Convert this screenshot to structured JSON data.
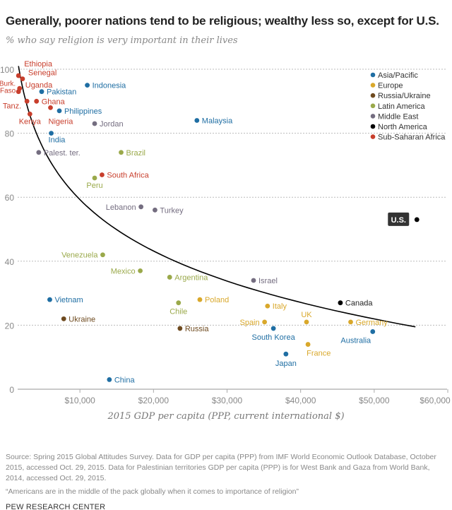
{
  "chart_data": {
    "type": "scatter",
    "title": "Generally, poorer nations tend to be religious; wealthy less so, except for U.S.",
    "subtitle": "% who say religion is very important in their lives",
    "xlabel": "2015 GDP per capita (PPP, current international $)",
    "ylabel": "",
    "xlim": [
      1500,
      60000
    ],
    "ylim": [
      0,
      100
    ],
    "x_ticks": [
      10000,
      20000,
      30000,
      40000,
      50000,
      60000
    ],
    "x_tick_labels": [
      "$10,000",
      "$20,000",
      "$30,000",
      "$40,000",
      "$50,000",
      "$60,000"
    ],
    "y_ticks": [
      0,
      20,
      40,
      60,
      80,
      100
    ],
    "y_tick_labels": [
      "0",
      "20",
      "40",
      "60",
      "80",
      "100"
    ],
    "grid": "horizontal dotted",
    "legend_placement": "top-right",
    "trendline": {
      "type": "logarithmic",
      "x_range": [
        1650,
        55600
      ]
    },
    "regions": [
      {
        "name": "Asia/Pacific",
        "color": "#1f6ea3"
      },
      {
        "name": "Europe",
        "color": "#d9a82b"
      },
      {
        "name": "Russia/Ukraine",
        "color": "#6e4a1f"
      },
      {
        "name": "Latin America",
        "color": "#9aa94a"
      },
      {
        "name": "Middle East",
        "color": "#746d80"
      },
      {
        "name": "North America",
        "color": "#000000"
      },
      {
        "name": "Sub-Saharan Africa",
        "color": "#c83e2c"
      }
    ],
    "points": [
      {
        "label": "Ethiopia",
        "region": "Sub-Saharan Africa",
        "x": 1650,
        "y": 98
      },
      {
        "label": "Senegal",
        "region": "Sub-Saharan Africa",
        "x": 2200,
        "y": 97
      },
      {
        "label": "Uganda",
        "region": "Sub-Saharan Africa",
        "x": 1800,
        "y": 94
      },
      {
        "label": "Burk. Faso",
        "region": "Sub-Saharan Africa",
        "x": 1650,
        "y": 93
      },
      {
        "label": "Tanz.",
        "region": "Sub-Saharan Africa",
        "x": 2800,
        "y": 90
      },
      {
        "label": "Ghana",
        "region": "Sub-Saharan Africa",
        "x": 4100,
        "y": 90
      },
      {
        "label": "Nigeria",
        "region": "Sub-Saharan Africa",
        "x": 6000,
        "y": 88
      },
      {
        "label": "Kenya",
        "region": "Sub-Saharan Africa",
        "x": 3200,
        "y": 86
      },
      {
        "label": "South Africa",
        "region": "Sub-Saharan Africa",
        "x": 13000,
        "y": 67
      },
      {
        "label": "Pakistan",
        "region": "Asia/Pacific",
        "x": 4800,
        "y": 93
      },
      {
        "label": "Indonesia",
        "region": "Asia/Pacific",
        "x": 11000,
        "y": 95
      },
      {
        "label": "Philippines",
        "region": "Asia/Pacific",
        "x": 7200,
        "y": 87
      },
      {
        "label": "India",
        "region": "Asia/Pacific",
        "x": 6100,
        "y": 80
      },
      {
        "label": "Malaysia",
        "region": "Asia/Pacific",
        "x": 25900,
        "y": 84
      },
      {
        "label": "Vietnam",
        "region": "Asia/Pacific",
        "x": 5900,
        "y": 28
      },
      {
        "label": "South Korea",
        "region": "Asia/Pacific",
        "x": 36300,
        "y": 19
      },
      {
        "label": "Australia",
        "region": "Asia/Pacific",
        "x": 49800,
        "y": 18
      },
      {
        "label": "Japan",
        "region": "Asia/Pacific",
        "x": 38000,
        "y": 11
      },
      {
        "label": "China",
        "region": "Asia/Pacific",
        "x": 14000,
        "y": 3
      },
      {
        "label": "Jordan",
        "region": "Middle East",
        "x": 12000,
        "y": 83
      },
      {
        "label": "Palest. ter.",
        "region": "Middle East",
        "x": 4400,
        "y": 74
      },
      {
        "label": "Lebanon",
        "region": "Middle East",
        "x": 18300,
        "y": 57
      },
      {
        "label": "Turkey",
        "region": "Middle East",
        "x": 20200,
        "y": 56
      },
      {
        "label": "Israel",
        "region": "Middle East",
        "x": 33600,
        "y": 34
      },
      {
        "label": "Brazil",
        "region": "Latin America",
        "x": 15600,
        "y": 74
      },
      {
        "label": "Peru",
        "region": "Latin America",
        "x": 12000,
        "y": 66
      },
      {
        "label": "Venezuela",
        "region": "Latin America",
        "x": 13100,
        "y": 42
      },
      {
        "label": "Mexico",
        "region": "Latin America",
        "x": 18200,
        "y": 37
      },
      {
        "label": "Argentina",
        "region": "Latin America",
        "x": 22200,
        "y": 35
      },
      {
        "label": "Chile",
        "region": "Latin America",
        "x": 23400,
        "y": 27
      },
      {
        "label": "U.S.",
        "region": "North America",
        "x": 55800,
        "y": 53
      },
      {
        "label": "Canada",
        "region": "North America",
        "x": 45400,
        "y": 27
      },
      {
        "label": "Poland",
        "region": "Europe",
        "x": 26300,
        "y": 28
      },
      {
        "label": "Italy",
        "region": "Europe",
        "x": 35500,
        "y": 26
      },
      {
        "label": "Spain",
        "region": "Europe",
        "x": 35100,
        "y": 21
      },
      {
        "label": "UK",
        "region": "Europe",
        "x": 40800,
        "y": 21
      },
      {
        "label": "Germany",
        "region": "Europe",
        "x": 46800,
        "y": 21
      },
      {
        "label": "France",
        "region": "Europe",
        "x": 41000,
        "y": 14
      },
      {
        "label": "Ukraine",
        "region": "Russia/Ukraine",
        "x": 7800,
        "y": 22
      },
      {
        "label": "Russia",
        "region": "Russia/Ukraine",
        "x": 23600,
        "y": 19
      }
    ]
  },
  "footer": {
    "source": "Source: Spring 2015 Global Attitudes Survey. Data for GDP per capita (PPP) from IMF World Economic Outlook Database, October 2015, accessed Oct. 29, 2015. Data for Palestinian territories GDP per capita (PPP) is for West Bank and Gaza from World Bank, 2014, accessed Oct. 29, 2015.",
    "note": "“Americans are in the middle of the pack globally when it comes to importance of religion”",
    "brand": "PEW RESEARCH CENTER"
  }
}
